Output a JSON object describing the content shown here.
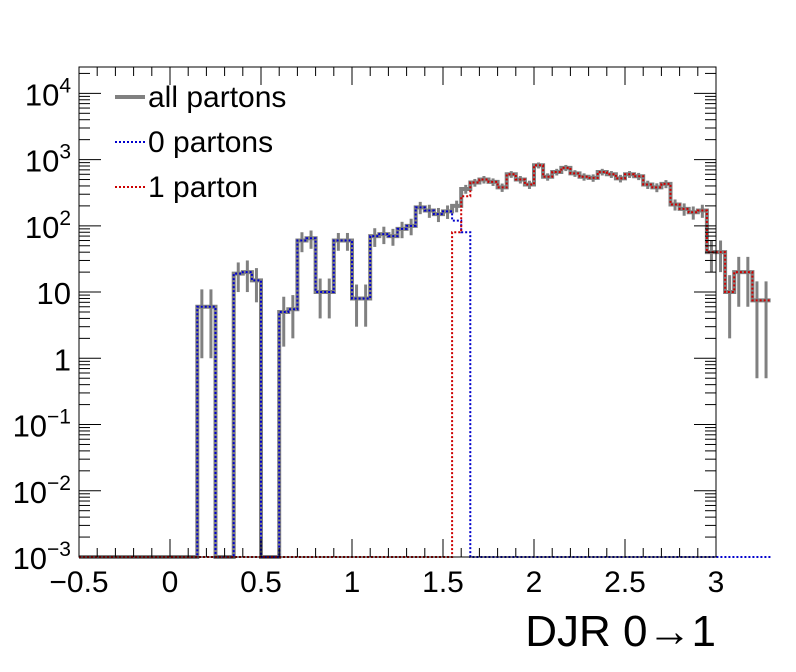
{
  "chart_data": {
    "type": "histogram",
    "xlabel": "DJR 0→1",
    "xlim": [
      -0.5,
      3.0
    ],
    "ylim": [
      0.001,
      25000
    ],
    "yscale": "log",
    "grid": false,
    "legend_position": "top-left",
    "bin_width": 0.05,
    "x_ticks": [
      {
        "value": -0.5,
        "label": "−0.5"
      },
      {
        "value": 0,
        "label": "0"
      },
      {
        "value": 0.5,
        "label": "0.5"
      },
      {
        "value": 1,
        "label": "1"
      },
      {
        "value": 1.5,
        "label": "1.5"
      },
      {
        "value": 2,
        "label": "2"
      },
      {
        "value": 2.5,
        "label": "2.5"
      },
      {
        "value": 3,
        "label": "3"
      }
    ],
    "y_ticks": [
      {
        "value": 0.001,
        "base": "10",
        "exp": "−3"
      },
      {
        "value": 0.01,
        "base": "10",
        "exp": "−2"
      },
      {
        "value": 0.1,
        "base": "10",
        "exp": "−1"
      },
      {
        "value": 1,
        "base": "1",
        "exp": ""
      },
      {
        "value": 10,
        "base": "10",
        "exp": ""
      },
      {
        "value": 100,
        "base": "10",
        "exp": "2"
      },
      {
        "value": 1000,
        "base": "10",
        "exp": "3"
      },
      {
        "value": 10000,
        "base": "10",
        "exp": "4"
      }
    ],
    "series": [
      {
        "name": "all partons",
        "color": "#808080",
        "style": "solid",
        "values": [
          0.001,
          0.001,
          0.001,
          0.001,
          0.001,
          0.001,
          0.001,
          0.001,
          0.001,
          0.001,
          0.001,
          0.001,
          0.001,
          6,
          6,
          0.001,
          0.001,
          19,
          20,
          15,
          0.001,
          0.001,
          5,
          5.5,
          60,
          65,
          10,
          10,
          60,
          60,
          8,
          8,
          70,
          75,
          70,
          90,
          100,
          190,
          170,
          150,
          165,
          200,
          360,
          450,
          500,
          460,
          380,
          600,
          500,
          420,
          820,
          550,
          650,
          750,
          620,
          550,
          530,
          650,
          600,
          520,
          600,
          560,
          420,
          380,
          430,
          210,
          180,
          160,
          170,
          40,
          40,
          10,
          20,
          20,
          7.5,
          7.5
        ],
        "errors": [
          0,
          0,
          0,
          0,
          0,
          0,
          0,
          0,
          0,
          0,
          0,
          0,
          0,
          5,
          5,
          0,
          0,
          9,
          10,
          8,
          0,
          0,
          3.5,
          3.5,
          20,
          20,
          6,
          6,
          18,
          18,
          5,
          5,
          22,
          22,
          20,
          25,
          28,
          40,
          38,
          36,
          38,
          40,
          55,
          60,
          65,
          60,
          55,
          70,
          65,
          60,
          85,
          70,
          75,
          80,
          72,
          70,
          68,
          75,
          72,
          68,
          72,
          70,
          60,
          58,
          60,
          40,
          38,
          36,
          38,
          20,
          20,
          8,
          14,
          14,
          7,
          7
        ]
      },
      {
        "name": "0 partons",
        "color": "#0000cc",
        "style": "dotted",
        "values": [
          0.001,
          0.001,
          0.001,
          0.001,
          0.001,
          0.001,
          0.001,
          0.001,
          0.001,
          0.001,
          0.001,
          0.001,
          0.001,
          6,
          6,
          0.001,
          0.001,
          19,
          20,
          15,
          0.001,
          0.001,
          5,
          5.5,
          60,
          65,
          10,
          10,
          60,
          60,
          8,
          8,
          70,
          75,
          70,
          90,
          100,
          190,
          170,
          150,
          165,
          120,
          80,
          0.001,
          0.001,
          0.001,
          0.001,
          0.001,
          0.001,
          0.001,
          0.001,
          0.001,
          0.001,
          0.001,
          0.001,
          0.001,
          0.001,
          0.001,
          0.001,
          0.001,
          0.001,
          0.001,
          0.001,
          0.001,
          0.001,
          0.001,
          0.001,
          0.001,
          0.001,
          0.001,
          0.001,
          0.001,
          0.001,
          0.001,
          0.001,
          0.001
        ]
      },
      {
        "name": "1 parton",
        "color": "#cc0000",
        "style": "dotted",
        "values": [
          0.001,
          0.001,
          0.001,
          0.001,
          0.001,
          0.001,
          0.001,
          0.001,
          0.001,
          0.001,
          0.001,
          0.001,
          0.001,
          0.001,
          0.001,
          0.001,
          0.001,
          0.001,
          0.001,
          0.001,
          0.001,
          0.001,
          0.001,
          0.001,
          0.001,
          0.001,
          0.001,
          0.001,
          0.001,
          0.001,
          0.001,
          0.001,
          0.001,
          0.001,
          0.001,
          0.001,
          0.001,
          0.001,
          0.001,
          0.001,
          0.001,
          80,
          280,
          450,
          500,
          460,
          380,
          600,
          500,
          420,
          820,
          550,
          650,
          750,
          620,
          550,
          530,
          650,
          600,
          520,
          600,
          560,
          420,
          380,
          430,
          210,
          180,
          160,
          170,
          40,
          40,
          10,
          20,
          20,
          7.5,
          7.5
        ]
      }
    ]
  }
}
